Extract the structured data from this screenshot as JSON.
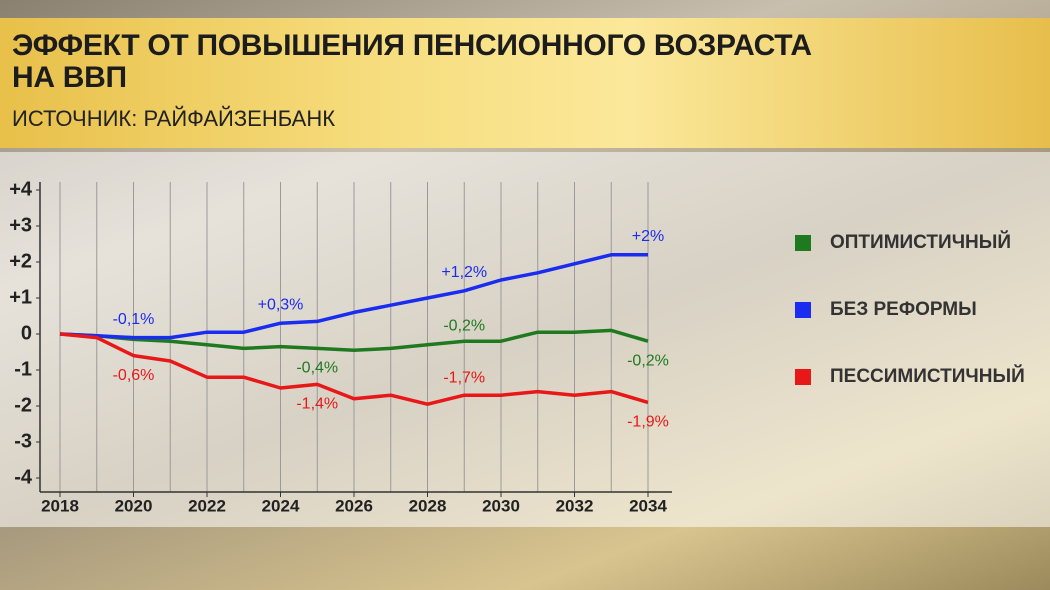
{
  "chart_data": {
    "type": "line",
    "title": "ЭФФЕКТ ОТ ПОВЫШЕНИЯ ПЕНСИОННОГО ВОЗРАСТА\nНА ВВП",
    "subtitle": "ИСТОЧНИК: РАЙФАЙЗЕНБАНК",
    "x": [
      2018,
      2019,
      2020,
      2021,
      2022,
      2023,
      2024,
      2025,
      2026,
      2027,
      2028,
      2029,
      2030,
      2031,
      2032,
      2033,
      2034
    ],
    "xlim": [
      2018,
      2034
    ],
    "xticks": [
      2018,
      2020,
      2022,
      2024,
      2026,
      2028,
      2030,
      2032,
      2034
    ],
    "ylim": [
      -4,
      4
    ],
    "yticks": [
      {
        "value": 4,
        "label": "+4"
      },
      {
        "value": 3,
        "label": "+3"
      },
      {
        "value": 2,
        "label": "+2"
      },
      {
        "value": 1,
        "label": "+1"
      },
      0,
      -1,
      -2,
      -3,
      -4
    ],
    "grid": true,
    "series": [
      {
        "name": "ОПТИМИСТИЧНЫЙ",
        "color": "#1f7a1f",
        "values": [
          0,
          -0.05,
          -0.15,
          -0.2,
          -0.3,
          -0.4,
          -0.35,
          -0.4,
          -0.45,
          -0.4,
          -0.3,
          -0.2,
          -0.2,
          0.05,
          0.05,
          0.1,
          -0.2
        ],
        "value_labels": [
          null,
          null,
          null,
          null,
          null,
          null,
          null,
          "-0,4%",
          null,
          null,
          null,
          "-0,2%",
          null,
          null,
          null,
          null,
          "-0,2%"
        ]
      },
      {
        "name": "БЕЗ РЕФОРМЫ",
        "color": "#1a2cf0",
        "values": [
          0,
          -0.05,
          -0.1,
          -0.1,
          0.05,
          0.05,
          0.3,
          0.35,
          0.6,
          0.8,
          1.0,
          1.2,
          1.5,
          1.7,
          1.95,
          2.2,
          2.2
        ],
        "value_labels": [
          null,
          null,
          "-0,1%",
          null,
          null,
          null,
          "+0,3%",
          null,
          null,
          null,
          null,
          "+1,2%",
          null,
          null,
          null,
          null,
          "+2%"
        ]
      },
      {
        "name": "ПЕССИМИСТИЧНЫЙ",
        "color": "#e81818",
        "values": [
          0,
          -0.1,
          -0.6,
          -0.75,
          -1.2,
          -1.2,
          -1.5,
          -1.4,
          -1.8,
          -1.7,
          -1.95,
          -1.7,
          -1.7,
          -1.6,
          -1.7,
          -1.6,
          -1.9
        ],
        "value_labels": [
          null,
          null,
          "-0,6%",
          null,
          null,
          null,
          null,
          "-1,4%",
          null,
          null,
          null,
          "-1,7%",
          null,
          null,
          null,
          null,
          "-1,9%"
        ]
      }
    ]
  }
}
